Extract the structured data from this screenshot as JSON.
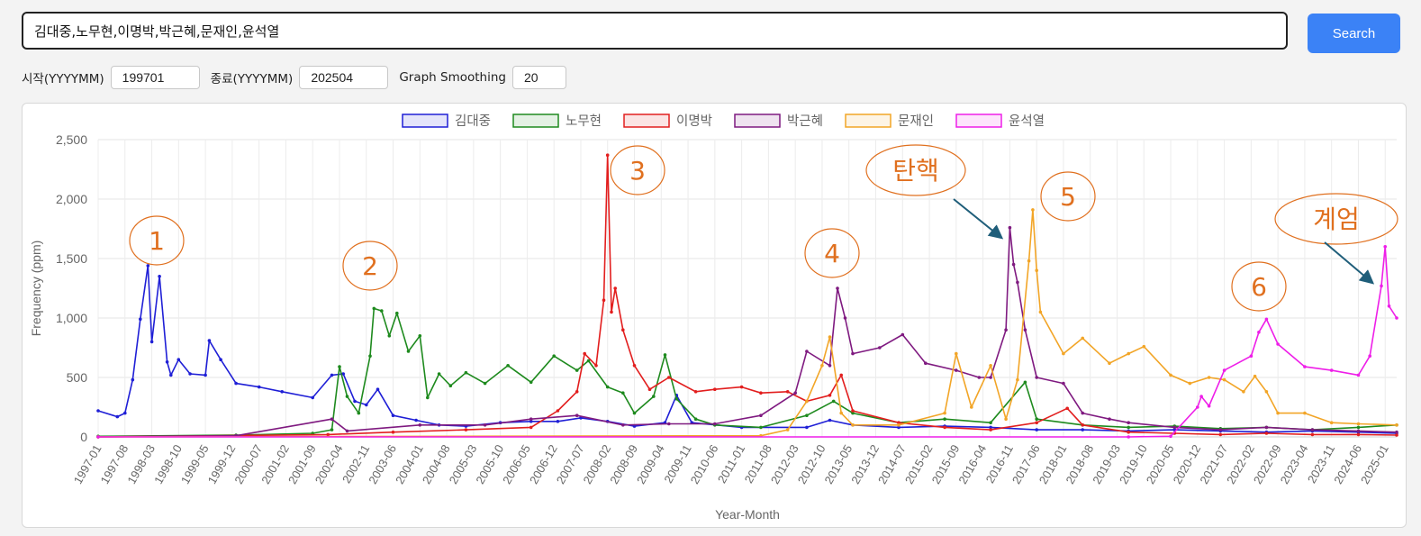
{
  "search": {
    "query": "김대중,노무현,이명박,박근혜,문재인,윤석열",
    "button_label": "Search"
  },
  "controls": {
    "start_label": "시작(YYYYMM)",
    "start_value": "199701",
    "end_label": "종료(YYYYMM)",
    "end_value": "202504",
    "smoothing_label": "Graph Smoothing",
    "smoothing_value": "20"
  },
  "colors": {
    "김대중": "#1f1fd6",
    "노무현": "#1e8a1e",
    "이명박": "#e21e1e",
    "박근혜": "#7f1a80",
    "문재인": "#f2a527",
    "윤석열": "#ee1ee8",
    "annotation": "#e0701f",
    "arrow": "#1f5e7a"
  },
  "chart_data": {
    "type": "line",
    "xlabel": "Year-Month",
    "ylabel": "Frequency (ppm)",
    "ylim": [
      0,
      2500
    ],
    "yticks": [
      "0",
      "500",
      "1,000",
      "1,500",
      "2,000",
      "2,500"
    ],
    "xticks": [
      "1997-01",
      "1997-08",
      "1998-03",
      "1998-10",
      "1999-05",
      "1999-12",
      "2000-07",
      "2001-02",
      "2001-09",
      "2002-04",
      "2002-11",
      "2003-06",
      "2004-01",
      "2004-08",
      "2005-03",
      "2005-10",
      "2006-05",
      "2006-12",
      "2007-07",
      "2008-02",
      "2008-09",
      "2009-04",
      "2009-11",
      "2010-06",
      "2011-01",
      "2011-08",
      "2012-03",
      "2012-10",
      "2013-05",
      "2013-12",
      "2014-07",
      "2015-02",
      "2015-09",
      "2016-04",
      "2016-11",
      "2017-06",
      "2018-01",
      "2018-08",
      "2019-03",
      "2019-10",
      "2020-05",
      "2020-12",
      "2021-07",
      "2022-02",
      "2022-09",
      "2023-04",
      "2023-11",
      "2024-06",
      "2025-01"
    ],
    "grid": true,
    "legend_position": "top",
    "series": [
      {
        "name": "김대중",
        "points": [
          [
            "1997-01",
            220
          ],
          [
            "1997-06",
            170
          ],
          [
            "1997-08",
            200
          ],
          [
            "1997-10",
            480
          ],
          [
            "1997-12",
            990
          ],
          [
            "1998-02",
            1440
          ],
          [
            "1998-03",
            800
          ],
          [
            "1998-05",
            1350
          ],
          [
            "1998-07",
            630
          ],
          [
            "1998-08",
            520
          ],
          [
            "1998-10",
            650
          ],
          [
            "1999-01",
            530
          ],
          [
            "1999-05",
            520
          ],
          [
            "1999-06",
            810
          ],
          [
            "1999-09",
            650
          ],
          [
            "2000-01",
            450
          ],
          [
            "2000-07",
            420
          ],
          [
            "2001-01",
            380
          ],
          [
            "2001-09",
            330
          ],
          [
            "2002-02",
            520
          ],
          [
            "2002-05",
            530
          ],
          [
            "2002-08",
            300
          ],
          [
            "2002-11",
            270
          ],
          [
            "2003-02",
            400
          ],
          [
            "2003-06",
            180
          ],
          [
            "2003-12",
            140
          ],
          [
            "2004-06",
            100
          ],
          [
            "2005-01",
            90
          ],
          [
            "2005-10",
            120
          ],
          [
            "2006-06",
            130
          ],
          [
            "2007-01",
            130
          ],
          [
            "2007-07",
            160
          ],
          [
            "2008-02",
            130
          ],
          [
            "2008-09",
            90
          ],
          [
            "2009-05",
            120
          ],
          [
            "2009-08",
            350
          ],
          [
            "2009-12",
            120
          ],
          [
            "2011-01",
            80
          ],
          [
            "2012-06",
            80
          ],
          [
            "2012-12",
            140
          ],
          [
            "2013-06",
            100
          ],
          [
            "2014-06",
            80
          ],
          [
            "2015-06",
            90
          ],
          [
            "2016-06",
            80
          ],
          [
            "2017-06",
            60
          ],
          [
            "2018-06",
            60
          ],
          [
            "2019-06",
            50
          ],
          [
            "2020-06",
            60
          ],
          [
            "2021-06",
            50
          ],
          [
            "2022-06",
            40
          ],
          [
            "2023-06",
            50
          ],
          [
            "2024-06",
            40
          ],
          [
            "2025-04",
            30
          ]
        ]
      },
      {
        "name": "노무현",
        "points": [
          [
            "1997-01",
            5
          ],
          [
            "2000-01",
            15
          ],
          [
            "2001-09",
            30
          ],
          [
            "2002-02",
            60
          ],
          [
            "2002-04",
            590
          ],
          [
            "2002-06",
            340
          ],
          [
            "2002-09",
            200
          ],
          [
            "2002-12",
            680
          ],
          [
            "2003-01",
            1080
          ],
          [
            "2003-03",
            1060
          ],
          [
            "2003-05",
            850
          ],
          [
            "2003-07",
            1040
          ],
          [
            "2003-10",
            720
          ],
          [
            "2004-01",
            850
          ],
          [
            "2004-03",
            330
          ],
          [
            "2004-06",
            530
          ],
          [
            "2004-09",
            430
          ],
          [
            "2005-01",
            540
          ],
          [
            "2005-06",
            450
          ],
          [
            "2005-12",
            600
          ],
          [
            "2006-06",
            460
          ],
          [
            "2006-12",
            680
          ],
          [
            "2007-06",
            560
          ],
          [
            "2007-09",
            640
          ],
          [
            "2008-02",
            420
          ],
          [
            "2008-06",
            370
          ],
          [
            "2008-09",
            200
          ],
          [
            "2009-02",
            340
          ],
          [
            "2009-05",
            690
          ],
          [
            "2009-08",
            320
          ],
          [
            "2010-01",
            150
          ],
          [
            "2010-06",
            100
          ],
          [
            "2011-06",
            80
          ],
          [
            "2012-06",
            180
          ],
          [
            "2013-01",
            300
          ],
          [
            "2013-06",
            200
          ],
          [
            "2014-06",
            120
          ],
          [
            "2015-06",
            150
          ],
          [
            "2016-06",
            120
          ],
          [
            "2017-03",
            460
          ],
          [
            "2017-06",
            150
          ],
          [
            "2018-06",
            100
          ],
          [
            "2019-06",
            80
          ],
          [
            "2020-06",
            90
          ],
          [
            "2021-06",
            70
          ],
          [
            "2022-06",
            80
          ],
          [
            "2023-06",
            60
          ],
          [
            "2024-06",
            80
          ],
          [
            "2025-04",
            100
          ]
        ]
      },
      {
        "name": "이명박",
        "points": [
          [
            "1997-01",
            0
          ],
          [
            "2002-01",
            20
          ],
          [
            "2003-06",
            40
          ],
          [
            "2005-01",
            60
          ],
          [
            "2006-06",
            80
          ],
          [
            "2007-01",
            220
          ],
          [
            "2007-06",
            380
          ],
          [
            "2007-08",
            700
          ],
          [
            "2007-11",
            600
          ],
          [
            "2008-01",
            1150
          ],
          [
            "2008-02",
            2370
          ],
          [
            "2008-03",
            1050
          ],
          [
            "2008-04",
            1250
          ],
          [
            "2008-06",
            900
          ],
          [
            "2008-09",
            600
          ],
          [
            "2009-01",
            400
          ],
          [
            "2009-06",
            500
          ],
          [
            "2010-01",
            380
          ],
          [
            "2010-06",
            400
          ],
          [
            "2011-01",
            420
          ],
          [
            "2011-06",
            370
          ],
          [
            "2012-01",
            380
          ],
          [
            "2012-06",
            300
          ],
          [
            "2012-12",
            350
          ],
          [
            "2013-03",
            520
          ],
          [
            "2013-06",
            220
          ],
          [
            "2014-06",
            120
          ],
          [
            "2015-06",
            80
          ],
          [
            "2016-06",
            60
          ],
          [
            "2017-06",
            120
          ],
          [
            "2018-02",
            240
          ],
          [
            "2018-06",
            100
          ],
          [
            "2019-06",
            40
          ],
          [
            "2020-06",
            30
          ],
          [
            "2021-06",
            20
          ],
          [
            "2022-06",
            30
          ],
          [
            "2023-06",
            20
          ],
          [
            "2024-06",
            20
          ],
          [
            "2025-04",
            15
          ]
        ]
      },
      {
        "name": "박근혜",
        "points": [
          [
            "1997-01",
            0
          ],
          [
            "2000-01",
            10
          ],
          [
            "2002-02",
            150
          ],
          [
            "2002-06",
            50
          ],
          [
            "2004-01",
            100
          ],
          [
            "2005-06",
            100
          ],
          [
            "2006-06",
            150
          ],
          [
            "2007-06",
            180
          ],
          [
            "2008-06",
            100
          ],
          [
            "2009-06",
            110
          ],
          [
            "2010-06",
            110
          ],
          [
            "2011-06",
            180
          ],
          [
            "2012-03",
            370
          ],
          [
            "2012-06",
            720
          ],
          [
            "2012-12",
            600
          ],
          [
            "2013-02",
            1250
          ],
          [
            "2013-04",
            1000
          ],
          [
            "2013-06",
            700
          ],
          [
            "2014-01",
            750
          ],
          [
            "2014-07",
            860
          ],
          [
            "2015-01",
            620
          ],
          [
            "2015-09",
            560
          ],
          [
            "2016-03",
            500
          ],
          [
            "2016-06",
            500
          ],
          [
            "2016-10",
            900
          ],
          [
            "2016-11",
            1760
          ],
          [
            "2016-12",
            1450
          ],
          [
            "2017-01",
            1300
          ],
          [
            "2017-03",
            900
          ],
          [
            "2017-06",
            500
          ],
          [
            "2018-01",
            450
          ],
          [
            "2018-06",
            200
          ],
          [
            "2019-01",
            150
          ],
          [
            "2019-06",
            120
          ],
          [
            "2020-06",
            80
          ],
          [
            "2021-06",
            60
          ],
          [
            "2022-06",
            80
          ],
          [
            "2023-06",
            60
          ],
          [
            "2024-06",
            50
          ],
          [
            "2025-04",
            40
          ]
        ]
      },
      {
        "name": "문재인",
        "points": [
          [
            "1997-01",
            0
          ],
          [
            "2011-06",
            10
          ],
          [
            "2012-01",
            60
          ],
          [
            "2012-06",
            300
          ],
          [
            "2012-10",
            600
          ],
          [
            "2012-12",
            840
          ],
          [
            "2013-03",
            200
          ],
          [
            "2013-06",
            100
          ],
          [
            "2014-06",
            100
          ],
          [
            "2015-06",
            200
          ],
          [
            "2015-09",
            700
          ],
          [
            "2016-01",
            250
          ],
          [
            "2016-06",
            600
          ],
          [
            "2016-10",
            150
          ],
          [
            "2017-01",
            480
          ],
          [
            "2017-04",
            1480
          ],
          [
            "2017-05",
            1910
          ],
          [
            "2017-06",
            1400
          ],
          [
            "2017-07",
            1050
          ],
          [
            "2018-01",
            700
          ],
          [
            "2018-06",
            830
          ],
          [
            "2019-01",
            620
          ],
          [
            "2019-06",
            700
          ],
          [
            "2019-10",
            760
          ],
          [
            "2020-05",
            520
          ],
          [
            "2020-10",
            450
          ],
          [
            "2021-03",
            500
          ],
          [
            "2021-07",
            480
          ],
          [
            "2021-12",
            380
          ],
          [
            "2022-03",
            510
          ],
          [
            "2022-06",
            380
          ],
          [
            "2022-09",
            200
          ],
          [
            "2023-04",
            200
          ],
          [
            "2023-11",
            120
          ],
          [
            "2024-06",
            110
          ],
          [
            "2025-04",
            100
          ]
        ]
      },
      {
        "name": "윤석열",
        "points": [
          [
            "1997-01",
            0
          ],
          [
            "2019-06",
            0
          ],
          [
            "2020-05",
            5
          ],
          [
            "2020-12",
            250
          ],
          [
            "2021-01",
            340
          ],
          [
            "2021-03",
            260
          ],
          [
            "2021-07",
            560
          ],
          [
            "2022-02",
            680
          ],
          [
            "2022-04",
            880
          ],
          [
            "2022-06",
            990
          ],
          [
            "2022-09",
            780
          ],
          [
            "2023-04",
            590
          ],
          [
            "2023-11",
            560
          ],
          [
            "2024-06",
            520
          ],
          [
            "2024-09",
            680
          ],
          [
            "2024-12",
            1270
          ],
          [
            "2025-01",
            1600
          ],
          [
            "2025-02",
            1100
          ],
          [
            "2025-04",
            1000
          ]
        ]
      }
    ]
  },
  "annotations": [
    {
      "label": "1"
    },
    {
      "label": "2"
    },
    {
      "label": "3"
    },
    {
      "label": "4"
    },
    {
      "label": "탄핵"
    },
    {
      "label": "5"
    },
    {
      "label": "6"
    },
    {
      "label": "계엄"
    }
  ]
}
